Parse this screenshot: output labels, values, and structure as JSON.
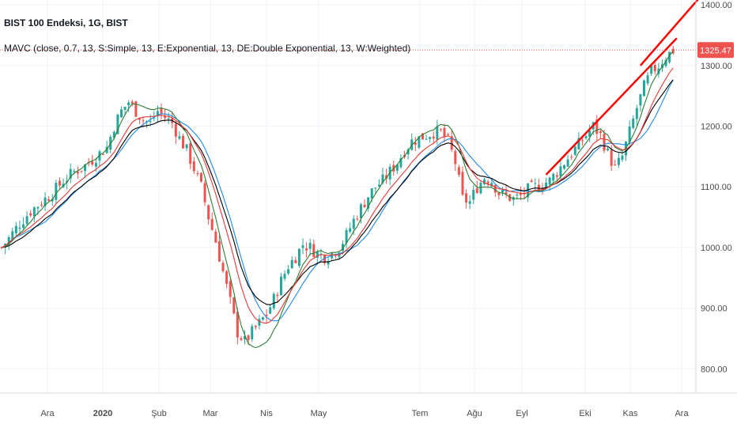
{
  "header": {
    "title": "BIST 100 Endeksi, 1G, BIST",
    "indicator": "MAVC (close, 0.7, 13, S:Simple, 13, E:Exponential, 13, DE:Double Exponential, 13, W:Weighted)"
  },
  "colors": {
    "up": "#26a69a",
    "down": "#ef5350",
    "sma": "#2e7d32",
    "ema": "#000000",
    "dema": "#e53935",
    "wma": "#1e88e5",
    "trendline": "#ff0000",
    "price_line": "#ef5350",
    "grid": "#f0f3fa"
  },
  "current_price": {
    "value": 1325.47,
    "label": "1325.47"
  },
  "chart_data": {
    "type": "candlestick",
    "title": "BIST 100 Endeksi, 1G, BIST",
    "y_ticks": [
      800,
      900,
      1000,
      1100,
      1200,
      1300,
      1400
    ],
    "y_tick_labels": [
      "800.00",
      "900.00",
      "1000.00",
      "1100.00",
      "1200.00",
      "1300.00",
      "1400.00"
    ],
    "ylim": [
      760,
      1408
    ],
    "x_labels": [
      "Ara",
      "2020",
      "Şub",
      "Mar",
      "Nis",
      "May",
      "Tem",
      "Ağu",
      "Eyl",
      "Eki",
      "Kas",
      "Ara"
    ],
    "x_label_bold": [
      false,
      true,
      false,
      false,
      false,
      false,
      false,
      false,
      false,
      false,
      false,
      false
    ],
    "series_names": [
      "Simple",
      "Exponential",
      "Double Exponential",
      "Weighted"
    ],
    "close_path": [
      {
        "t": 0,
        "v": 1000
      },
      {
        "t": 2,
        "v": 1015
      },
      {
        "t": 5,
        "v": 1040
      },
      {
        "t": 8,
        "v": 1060
      },
      {
        "t": 11,
        "v": 1075
      },
      {
        "t": 14,
        "v": 1090
      },
      {
        "t": 17,
        "v": 1110
      },
      {
        "t": 20,
        "v": 1125
      },
      {
        "t": 23,
        "v": 1135
      },
      {
        "t": 26,
        "v": 1150
      },
      {
        "t": 29,
        "v": 1165
      },
      {
        "t": 31,
        "v": 1200
      },
      {
        "t": 33,
        "v": 1225
      },
      {
        "t": 35,
        "v": 1240
      },
      {
        "t": 37,
        "v": 1225
      },
      {
        "t": 39,
        "v": 1210
      },
      {
        "t": 41,
        "v": 1205
      },
      {
        "t": 43,
        "v": 1225
      },
      {
        "t": 45,
        "v": 1215
      },
      {
        "t": 47,
        "v": 1205
      },
      {
        "t": 49,
        "v": 1180
      },
      {
        "t": 51,
        "v": 1160
      },
      {
        "t": 53,
        "v": 1130
      },
      {
        "t": 55,
        "v": 1100
      },
      {
        "t": 57,
        "v": 1050
      },
      {
        "t": 59,
        "v": 1010
      },
      {
        "t": 61,
        "v": 960
      },
      {
        "t": 63,
        "v": 910
      },
      {
        "t": 65,
        "v": 860
      },
      {
        "t": 67,
        "v": 845
      },
      {
        "t": 69,
        "v": 860
      },
      {
        "t": 71,
        "v": 875
      },
      {
        "t": 73,
        "v": 890
      },
      {
        "t": 75,
        "v": 915
      },
      {
        "t": 77,
        "v": 945
      },
      {
        "t": 79,
        "v": 970
      },
      {
        "t": 81,
        "v": 985
      },
      {
        "t": 83,
        "v": 1005
      },
      {
        "t": 85,
        "v": 1000
      },
      {
        "t": 87,
        "v": 990
      },
      {
        "t": 89,
        "v": 985
      },
      {
        "t": 91,
        "v": 990
      },
      {
        "t": 93,
        "v": 1000
      },
      {
        "t": 95,
        "v": 1020
      },
      {
        "t": 97,
        "v": 1045
      },
      {
        "t": 99,
        "v": 1065
      },
      {
        "t": 101,
        "v": 1085
      },
      {
        "t": 103,
        "v": 1100
      },
      {
        "t": 105,
        "v": 1110
      },
      {
        "t": 107,
        "v": 1125
      },
      {
        "t": 109,
        "v": 1140
      },
      {
        "t": 111,
        "v": 1160
      },
      {
        "t": 113,
        "v": 1175
      },
      {
        "t": 115,
        "v": 1180
      },
      {
        "t": 117,
        "v": 1185
      },
      {
        "t": 119,
        "v": 1190
      },
      {
        "t": 121,
        "v": 1190
      },
      {
        "t": 123,
        "v": 1175
      },
      {
        "t": 125,
        "v": 1140
      },
      {
        "t": 127,
        "v": 1080
      },
      {
        "t": 129,
        "v": 1075
      },
      {
        "t": 131,
        "v": 1100
      },
      {
        "t": 133,
        "v": 1115
      },
      {
        "t": 135,
        "v": 1110
      },
      {
        "t": 137,
        "v": 1090
      },
      {
        "t": 139,
        "v": 1085
      },
      {
        "t": 141,
        "v": 1080
      },
      {
        "t": 143,
        "v": 1085
      },
      {
        "t": 145,
        "v": 1095
      },
      {
        "t": 147,
        "v": 1100
      },
      {
        "t": 149,
        "v": 1105
      },
      {
        "t": 151,
        "v": 1110
      },
      {
        "t": 153,
        "v": 1125
      },
      {
        "t": 155,
        "v": 1140
      },
      {
        "t": 157,
        "v": 1155
      },
      {
        "t": 159,
        "v": 1170
      },
      {
        "t": 161,
        "v": 1185
      },
      {
        "t": 163,
        "v": 1200
      },
      {
        "t": 165,
        "v": 1185
      },
      {
        "t": 167,
        "v": 1155
      },
      {
        "t": 169,
        "v": 1130
      },
      {
        "t": 171,
        "v": 1150
      },
      {
        "t": 173,
        "v": 1190
      },
      {
        "t": 175,
        "v": 1230
      },
      {
        "t": 177,
        "v": 1265
      },
      {
        "t": 179,
        "v": 1290
      },
      {
        "t": 181,
        "v": 1300
      },
      {
        "t": 183,
        "v": 1315
      },
      {
        "t": 185,
        "v": 1325
      }
    ],
    "trendlines": [
      {
        "from": {
          "t": 150,
          "v": 1120
        },
        "to": {
          "t": 186,
          "v": 1345
        }
      },
      {
        "from": {
          "t": 176,
          "v": 1300
        },
        "to": {
          "t": 192,
          "v": 1410
        }
      }
    ]
  }
}
